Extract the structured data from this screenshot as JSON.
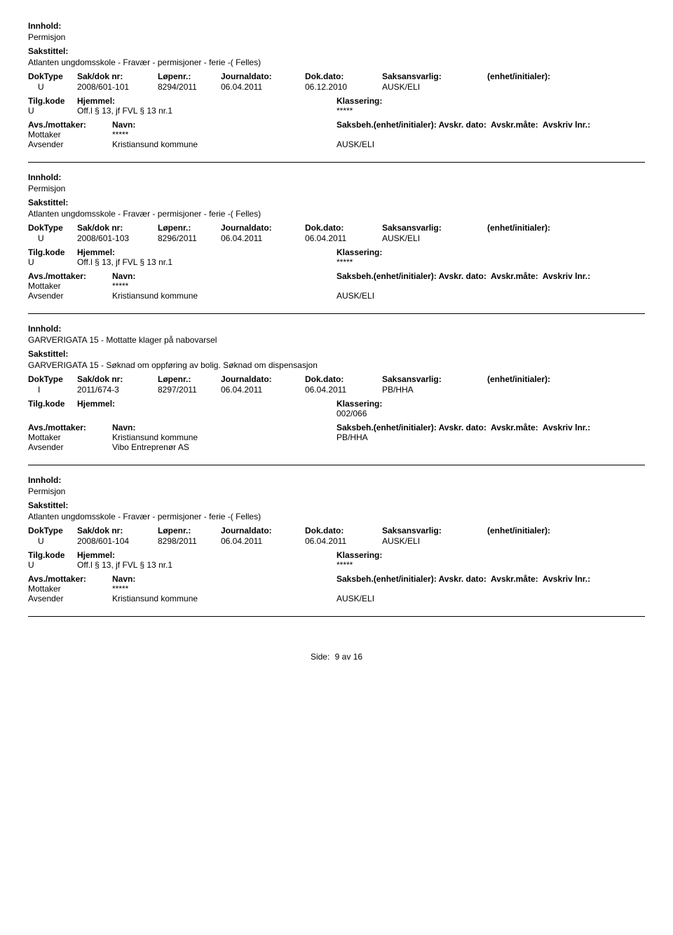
{
  "labels": {
    "innhold": "Innhold:",
    "sakstittel": "Sakstittel:",
    "doktype": "DokType",
    "sakdok": "Sak/dok nr:",
    "lopenr": "Løpenr.:",
    "journaldato": "Journaldato:",
    "dokdato": "Dok.dato:",
    "saksansvarlig": "Saksansvarlig:",
    "enhet": "(enhet/initialer):",
    "tilgkode": "Tilg.kode",
    "hjemmel": "Hjemmel:",
    "klassering": "Klassering:",
    "avsmottaker": "Avs./mottaker:",
    "navn": "Navn:",
    "saksbeh": "Saksbeh.(enhet/initialer):",
    "avskrdato": "Avskr. dato:",
    "avskrmate": "Avskr.måte:",
    "avskrivlnr": "Avskriv lnr.:",
    "mottaker": "Mottaker",
    "avsender": "Avsender",
    "side": "Side:",
    "av": "av"
  },
  "records": [
    {
      "innhold": "Permisjon",
      "sakstittel": "Atlanten ungdomsskole - Fravær - permisjoner - ferie -( Felles)",
      "doktype": "U",
      "sakdok": "2008/601-101",
      "lopenr": "8294/2011",
      "journaldato": "06.04.2011",
      "dokdato": "06.12.2010",
      "saksansvarlig": "AUSK/ELI",
      "tilgkode": "U",
      "hjemmel": "Off.l § 13, jf FVL § 13 nr.1",
      "klassering": "*****",
      "mottaker_navn": "*****",
      "avsender_navn": "Kristiansund kommune",
      "saksbeh_val": "AUSK/ELI"
    },
    {
      "innhold": "Permisjon",
      "sakstittel": "Atlanten ungdomsskole - Fravær - permisjoner - ferie -( Felles)",
      "doktype": "U",
      "sakdok": "2008/601-103",
      "lopenr": "8296/2011",
      "journaldato": "06.04.2011",
      "dokdato": "06.04.2011",
      "saksansvarlig": "AUSK/ELI",
      "tilgkode": "U",
      "hjemmel": "Off.l § 13, jf FVL § 13 nr.1",
      "klassering": "*****",
      "mottaker_navn": "*****",
      "avsender_navn": "Kristiansund kommune",
      "saksbeh_val": "AUSK/ELI"
    },
    {
      "innhold": "GARVERIGATA 15 - Mottatte klager på nabovarsel",
      "sakstittel": "GARVERIGATA 15 - Søknad om oppføring av bolig. Søknad om dispensasjon",
      "doktype": "I",
      "sakdok": "2011/674-3",
      "lopenr": "8297/2011",
      "journaldato": "06.04.2011",
      "dokdato": "06.04.2011",
      "saksansvarlig": "PB/HHA",
      "tilgkode": "",
      "hjemmel": "",
      "klassering": "002/066",
      "mottaker_navn": "Kristiansund kommune",
      "avsender_navn": "Vibo Entreprenør AS",
      "saksbeh_val": "PB/HHA"
    },
    {
      "innhold": "Permisjon",
      "sakstittel": "Atlanten ungdomsskole - Fravær - permisjoner - ferie -( Felles)",
      "doktype": "U",
      "sakdok": "2008/601-104",
      "lopenr": "8298/2011",
      "journaldato": "06.04.2011",
      "dokdato": "06.04.2011",
      "saksansvarlig": "AUSK/ELI",
      "tilgkode": "U",
      "hjemmel": "Off.l § 13, jf FVL § 13 nr.1",
      "klassering": "*****",
      "mottaker_navn": "*****",
      "avsender_navn": "Kristiansund kommune",
      "saksbeh_val": "AUSK/ELI"
    }
  ],
  "footer": {
    "page": "9",
    "total": "16"
  }
}
